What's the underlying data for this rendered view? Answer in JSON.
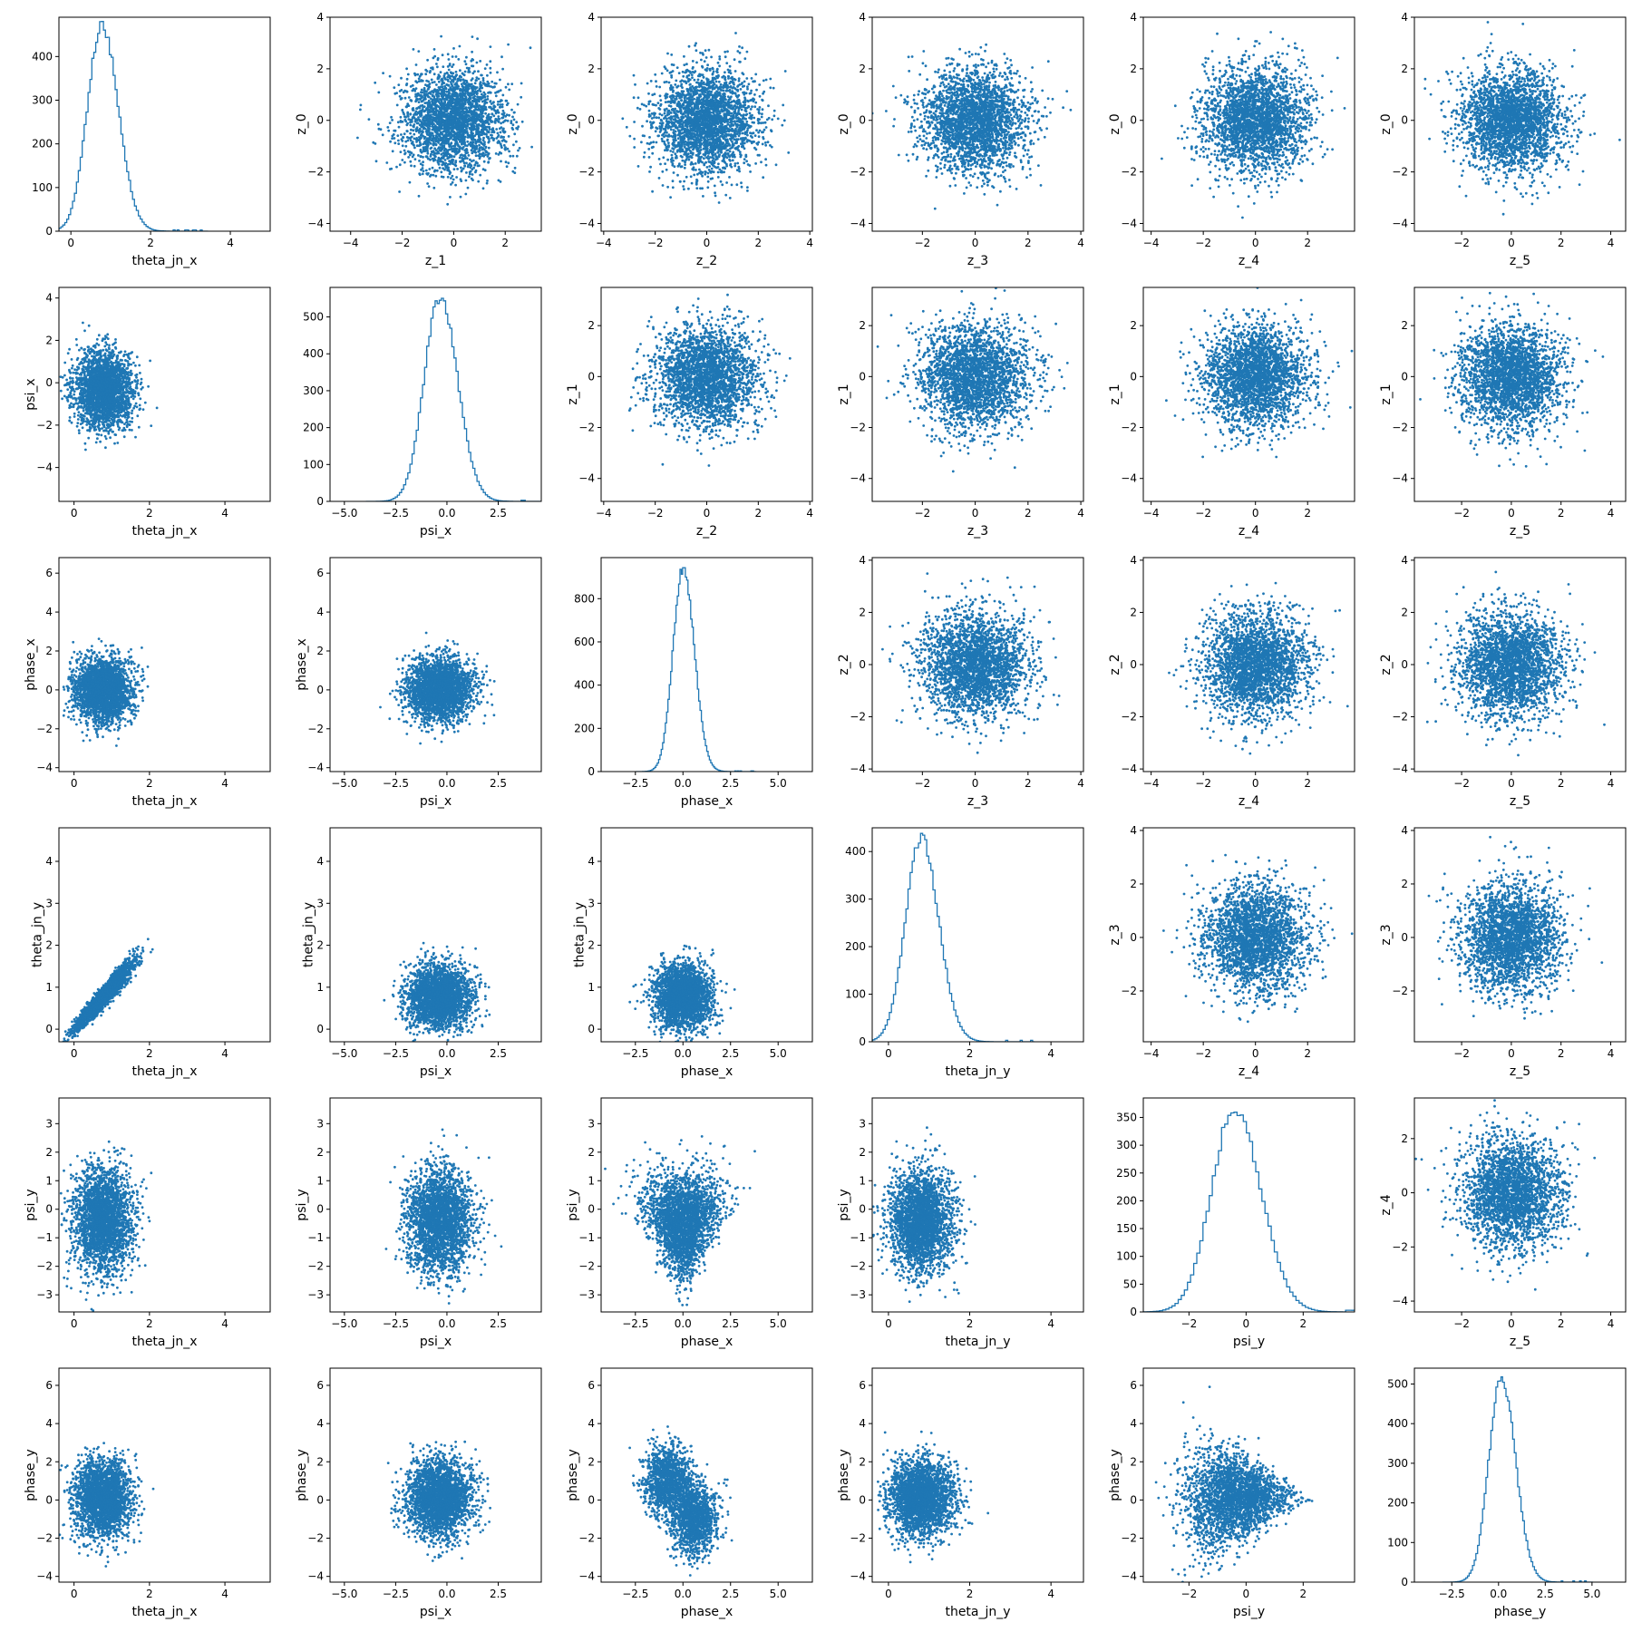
{
  "figure": {
    "type": "pairplot-grid",
    "rows": 6,
    "cols": 6,
    "marker_color": "#1f77b4"
  },
  "chart_data": [
    {
      "type": "histogram",
      "row": 0,
      "col": 0,
      "xlabel": "theta_jn_x",
      "ylabel": "",
      "center": 0.78,
      "spread": 0.38,
      "peak": 470,
      "xlim": [
        -0.3,
        5.0
      ],
      "xticks": [
        0,
        2,
        4
      ],
      "ylim": [
        0,
        490
      ],
      "yticks": [
        0,
        100,
        200,
        300,
        400
      ],
      "seed": 1
    },
    {
      "type": "scatter",
      "row": 0,
      "col": 1,
      "xlabel": "z_1",
      "ylabel": "z_0",
      "xlim": [
        -4.8,
        3.4
      ],
      "ylim": [
        -4.3,
        4.0
      ],
      "xticks": [
        -4,
        -2,
        0,
        2
      ],
      "yticks": [
        -4,
        -2,
        0,
        2,
        4
      ],
      "shape": "blob",
      "cx": 0,
      "cy": 0,
      "sx": 1,
      "sy": 1,
      "seed": 2
    },
    {
      "type": "scatter",
      "row": 0,
      "col": 2,
      "xlabel": "z_2",
      "ylabel": "z_0",
      "xlim": [
        -4.1,
        4.1
      ],
      "ylim": [
        -4.3,
        4.0
      ],
      "xticks": [
        -4,
        -2,
        0,
        2,
        4
      ],
      "yticks": [
        -4,
        -2,
        0,
        2,
        4
      ],
      "shape": "blob",
      "cx": 0,
      "cy": 0,
      "sx": 1,
      "sy": 1,
      "seed": 3
    },
    {
      "type": "scatter",
      "row": 0,
      "col": 3,
      "xlabel": "z_3",
      "ylabel": "z_0",
      "xlim": [
        -3.9,
        4.1
      ],
      "ylim": [
        -4.3,
        4.0
      ],
      "xticks": [
        -2,
        0,
        2,
        4
      ],
      "yticks": [
        -4,
        -2,
        0,
        2,
        4
      ],
      "shape": "blob",
      "cx": 0,
      "cy": 0,
      "sx": 1,
      "sy": 1,
      "seed": 4
    },
    {
      "type": "scatter",
      "row": 0,
      "col": 4,
      "xlabel": "z_4",
      "ylabel": "z_0",
      "xlim": [
        -4.3,
        3.8
      ],
      "ylim": [
        -4.3,
        4.0
      ],
      "xticks": [
        -4,
        -2,
        0,
        2
      ],
      "yticks": [
        -4,
        -2,
        0,
        2,
        4
      ],
      "shape": "blob",
      "cx": 0,
      "cy": 0,
      "sx": 1,
      "sy": 1,
      "seed": 5
    },
    {
      "type": "scatter",
      "row": 0,
      "col": 5,
      "xlabel": "z_5",
      "ylabel": "z_0",
      "xlim": [
        -3.9,
        4.6
      ],
      "ylim": [
        -4.3,
        4.0
      ],
      "xticks": [
        -2,
        0,
        2,
        4
      ],
      "yticks": [
        -4,
        -2,
        0,
        2,
        4
      ],
      "shape": "blob",
      "cx": 0,
      "cy": 0,
      "sx": 1,
      "sy": 1,
      "seed": 6
    },
    {
      "type": "scatter",
      "row": 1,
      "col": 0,
      "xlabel": "theta_jn_x",
      "ylabel": "psi_x",
      "xlim": [
        -0.4,
        5.2
      ],
      "ylim": [
        -5.6,
        4.5
      ],
      "xticks": [
        0,
        2,
        4
      ],
      "yticks": [
        -4,
        -2,
        0,
        2,
        4
      ],
      "shape": "blob",
      "cx": 0.78,
      "cy": -0.35,
      "sx": 0.38,
      "sy": 0.9,
      "seed": 7
    },
    {
      "type": "histogram",
      "row": 1,
      "col": 1,
      "xlabel": "psi_x",
      "ylabel": "",
      "center": -0.35,
      "spread": 0.8,
      "peak": 555,
      "xlim": [
        -5.7,
        4.6
      ],
      "xticks": [
        -5.0,
        -2.5,
        0.0,
        2.5
      ],
      "ylim": [
        0,
        580
      ],
      "yticks": [
        0,
        100,
        200,
        300,
        400,
        500
      ],
      "seed": 8
    },
    {
      "type": "scatter",
      "row": 1,
      "col": 2,
      "xlabel": "z_2",
      "ylabel": "z_1",
      "xlim": [
        -4.1,
        4.1
      ],
      "ylim": [
        -4.9,
        3.5
      ],
      "xticks": [
        -4,
        -2,
        0,
        2,
        4
      ],
      "yticks": [
        -4,
        -2,
        0,
        2
      ],
      "shape": "blob",
      "cx": 0,
      "cy": 0,
      "sx": 1,
      "sy": 1,
      "seed": 9
    },
    {
      "type": "scatter",
      "row": 1,
      "col": 3,
      "xlabel": "z_3",
      "ylabel": "z_1",
      "xlim": [
        -3.9,
        4.1
      ],
      "ylim": [
        -4.9,
        3.5
      ],
      "xticks": [
        -2,
        0,
        2,
        4
      ],
      "yticks": [
        -4,
        -2,
        0,
        2
      ],
      "shape": "blob",
      "cx": 0,
      "cy": 0,
      "sx": 1,
      "sy": 1,
      "seed": 10
    },
    {
      "type": "scatter",
      "row": 1,
      "col": 4,
      "xlabel": "z_4",
      "ylabel": "z_1",
      "xlim": [
        -4.3,
        3.8
      ],
      "ylim": [
        -4.9,
        3.5
      ],
      "xticks": [
        -4,
        -2,
        0,
        2
      ],
      "yticks": [
        -4,
        -2,
        0,
        2
      ],
      "shape": "blob",
      "cx": 0,
      "cy": 0,
      "sx": 1,
      "sy": 1,
      "seed": 11
    },
    {
      "type": "scatter",
      "row": 1,
      "col": 5,
      "xlabel": "z_5",
      "ylabel": "z_1",
      "xlim": [
        -3.9,
        4.6
      ],
      "ylim": [
        -4.9,
        3.5
      ],
      "xticks": [
        -2,
        0,
        2,
        4
      ],
      "yticks": [
        -4,
        -2,
        0,
        2
      ],
      "shape": "blob",
      "cx": 0,
      "cy": 0,
      "sx": 1,
      "sy": 1,
      "seed": 12
    },
    {
      "type": "scatter",
      "row": 2,
      "col": 0,
      "xlabel": "theta_jn_x",
      "ylabel": "phase_x",
      "xlim": [
        -0.4,
        5.2
      ],
      "ylim": [
        -4.2,
        6.8
      ],
      "xticks": [
        0,
        2,
        4
      ],
      "yticks": [
        -4,
        -2,
        0,
        2,
        4,
        6
      ],
      "shape": "blob",
      "cx": 0.78,
      "cy": 0,
      "sx": 0.38,
      "sy": 0.8,
      "seed": 13
    },
    {
      "type": "scatter",
      "row": 2,
      "col": 1,
      "xlabel": "psi_x",
      "ylabel": "phase_x",
      "xlim": [
        -5.7,
        4.6
      ],
      "ylim": [
        -4.2,
        6.8
      ],
      "xticks": [
        -5.0,
        -2.5,
        0.0,
        2.5
      ],
      "yticks": [
        -4,
        -2,
        0,
        2,
        4,
        6
      ],
      "shape": "blob",
      "cx": -0.35,
      "cy": 0,
      "sx": 0.8,
      "sy": 0.8,
      "seed": 14
    },
    {
      "type": "histogram",
      "row": 2,
      "col": 2,
      "xlabel": "phase_x",
      "ylabel": "",
      "center": 0.0,
      "spread": 0.55,
      "peak": 940,
      "xlim": [
        -4.3,
        6.8
      ],
      "xticks": [
        -2.5,
        0.0,
        2.5,
        5.0
      ],
      "ylim": [
        0,
        990
      ],
      "yticks": [
        0,
        200,
        400,
        600,
        800
      ],
      "seed": 15
    },
    {
      "type": "scatter",
      "row": 2,
      "col": 3,
      "xlabel": "z_3",
      "ylabel": "z_2",
      "xlim": [
        -3.9,
        4.1
      ],
      "ylim": [
        -4.1,
        4.1
      ],
      "xticks": [
        -2,
        0,
        2,
        4
      ],
      "yticks": [
        -4,
        -2,
        0,
        2,
        4
      ],
      "shape": "blob",
      "cx": 0,
      "cy": 0,
      "sx": 1,
      "sy": 1,
      "seed": 16
    },
    {
      "type": "scatter",
      "row": 2,
      "col": 4,
      "xlabel": "z_4",
      "ylabel": "z_2",
      "xlim": [
        -4.3,
        3.8
      ],
      "ylim": [
        -4.1,
        4.1
      ],
      "xticks": [
        -4,
        -2,
        0,
        2
      ],
      "yticks": [
        -4,
        -2,
        0,
        2,
        4
      ],
      "shape": "blob",
      "cx": 0,
      "cy": 0,
      "sx": 1,
      "sy": 1,
      "seed": 17
    },
    {
      "type": "scatter",
      "row": 2,
      "col": 5,
      "xlabel": "z_5",
      "ylabel": "z_2",
      "xlim": [
        -3.9,
        4.6
      ],
      "ylim": [
        -4.1,
        4.1
      ],
      "xticks": [
        -2,
        0,
        2,
        4
      ],
      "yticks": [
        -4,
        -2,
        0,
        2,
        4
      ],
      "shape": "blob",
      "cx": 0,
      "cy": 0,
      "sx": 1,
      "sy": 1,
      "seed": 18
    },
    {
      "type": "scatter",
      "row": 3,
      "col": 0,
      "xlabel": "theta_jn_x",
      "ylabel": "theta_jn_y",
      "xlim": [
        -0.4,
        5.2
      ],
      "ylim": [
        -0.3,
        4.8
      ],
      "xticks": [
        0,
        2,
        4
      ],
      "yticks": [
        0,
        1,
        2,
        3,
        4
      ],
      "shape": "diagonal",
      "cx": 0.78,
      "cy": 0.78,
      "sx": 0.38,
      "sy": 0.38,
      "seed": 19
    },
    {
      "type": "scatter",
      "row": 3,
      "col": 1,
      "xlabel": "psi_x",
      "ylabel": "theta_jn_y",
      "xlim": [
        -5.7,
        4.6
      ],
      "ylim": [
        -0.3,
        4.8
      ],
      "xticks": [
        -5.0,
        -2.5,
        0.0,
        2.5
      ],
      "yticks": [
        0,
        1,
        2,
        3,
        4
      ],
      "shape": "blob",
      "cx": -0.35,
      "cy": 0.78,
      "sx": 0.8,
      "sy": 0.38,
      "seed": 20
    },
    {
      "type": "scatter",
      "row": 3,
      "col": 2,
      "xlabel": "phase_x",
      "ylabel": "theta_jn_y",
      "xlim": [
        -4.3,
        6.8
      ],
      "ylim": [
        -0.3,
        4.8
      ],
      "xticks": [
        -2.5,
        0.0,
        2.5,
        5.0
      ],
      "yticks": [
        0,
        1,
        2,
        3,
        4
      ],
      "shape": "blob",
      "cx": 0,
      "cy": 0.78,
      "sx": 0.75,
      "sy": 0.38,
      "seed": 21
    },
    {
      "type": "histogram",
      "row": 3,
      "col": 3,
      "xlabel": "theta_jn_y",
      "ylabel": "",
      "center": 0.8,
      "spread": 0.4,
      "peak": 428,
      "xlim": [
        -0.4,
        4.8
      ],
      "xticks": [
        0,
        2,
        4
      ],
      "ylim": [
        0,
        450
      ],
      "yticks": [
        0,
        100,
        200,
        300,
        400
      ],
      "seed": 22
    },
    {
      "type": "scatter",
      "row": 3,
      "col": 4,
      "xlabel": "z_4",
      "ylabel": "z_3",
      "xlim": [
        -4.3,
        3.8
      ],
      "ylim": [
        -3.9,
        4.1
      ],
      "xticks": [
        -4,
        -2,
        0,
        2
      ],
      "yticks": [
        -2,
        0,
        2,
        4
      ],
      "shape": "blob",
      "cx": 0,
      "cy": 0,
      "sx": 1,
      "sy": 1,
      "seed": 23
    },
    {
      "type": "scatter",
      "row": 3,
      "col": 5,
      "xlabel": "z_5",
      "ylabel": "z_3",
      "xlim": [
        -3.9,
        4.6
      ],
      "ylim": [
        -3.9,
        4.1
      ],
      "xticks": [
        -2,
        0,
        2,
        4
      ],
      "yticks": [
        -2,
        0,
        2,
        4
      ],
      "shape": "blob",
      "cx": 0,
      "cy": 0,
      "sx": 1,
      "sy": 1,
      "seed": 24
    },
    {
      "type": "scatter",
      "row": 4,
      "col": 0,
      "xlabel": "theta_jn_x",
      "ylabel": "psi_y",
      "xlim": [
        -0.4,
        5.2
      ],
      "ylim": [
        -3.6,
        3.9
      ],
      "xticks": [
        0,
        2,
        4
      ],
      "yticks": [
        -3,
        -2,
        -1,
        0,
        1,
        2,
        3
      ],
      "shape": "blob",
      "cx": 0.78,
      "cy": -0.4,
      "sx": 0.38,
      "sy": 0.9,
      "seed": 25
    },
    {
      "type": "scatter",
      "row": 4,
      "col": 1,
      "xlabel": "psi_x",
      "ylabel": "psi_y",
      "xlim": [
        -5.7,
        4.6
      ],
      "ylim": [
        -3.6,
        3.9
      ],
      "xticks": [
        -5.0,
        -2.5,
        0.0,
        2.5
      ],
      "yticks": [
        -3,
        -2,
        -1,
        0,
        1,
        2,
        3
      ],
      "shape": "blob",
      "cx": -0.35,
      "cy": -0.4,
      "sx": 0.8,
      "sy": 0.9,
      "seed": 26
    },
    {
      "type": "scatter",
      "row": 4,
      "col": 2,
      "xlabel": "phase_x",
      "ylabel": "psi_y",
      "xlim": [
        -4.3,
        6.8
      ],
      "ylim": [
        -3.6,
        3.9
      ],
      "xticks": [
        -2.5,
        0.0,
        2.5,
        5.0
      ],
      "yticks": [
        -3,
        -2,
        -1,
        0,
        1,
        2,
        3
      ],
      "shape": "funnel",
      "cx": 0,
      "cy": -0.4,
      "sx": 0.75,
      "sy": 0.9,
      "seed": 27
    },
    {
      "type": "scatter",
      "row": 4,
      "col": 3,
      "xlabel": "theta_jn_y",
      "ylabel": "psi_y",
      "xlim": [
        -0.4,
        4.8
      ],
      "ylim": [
        -3.6,
        3.9
      ],
      "xticks": [
        0,
        2,
        4
      ],
      "yticks": [
        -3,
        -2,
        -1,
        0,
        1,
        2,
        3
      ],
      "shape": "blob",
      "cx": 0.8,
      "cy": -0.4,
      "sx": 0.4,
      "sy": 0.9,
      "seed": 28
    },
    {
      "type": "histogram",
      "row": 4,
      "col": 4,
      "xlabel": "psi_y",
      "ylabel": "",
      "center": -0.4,
      "spread": 0.85,
      "peak": 365,
      "xlim": [
        -3.6,
        3.8
      ],
      "xticks": [
        -2,
        0,
        2
      ],
      "ylim": [
        0,
        385
      ],
      "yticks": [
        0,
        50,
        100,
        150,
        200,
        250,
        300,
        350
      ],
      "seed": 29
    },
    {
      "type": "scatter",
      "row": 4,
      "col": 5,
      "xlabel": "z_5",
      "ylabel": "z_4",
      "xlim": [
        -3.9,
        4.6
      ],
      "ylim": [
        -4.4,
        3.5
      ],
      "xticks": [
        -2,
        0,
        2,
        4
      ],
      "yticks": [
        -4,
        -2,
        0,
        2
      ],
      "shape": "blob",
      "cx": 0,
      "cy": 0,
      "sx": 1,
      "sy": 1,
      "seed": 30
    },
    {
      "type": "scatter",
      "row": 5,
      "col": 0,
      "xlabel": "theta_jn_x",
      "ylabel": "phase_y",
      "xlim": [
        -0.4,
        5.2
      ],
      "ylim": [
        -4.3,
        6.9
      ],
      "xticks": [
        0,
        2,
        4
      ],
      "yticks": [
        -4,
        -2,
        0,
        2,
        4,
        6
      ],
      "shape": "blob",
      "cx": 0.78,
      "cy": 0.1,
      "sx": 0.38,
      "sy": 1.0,
      "seed": 31
    },
    {
      "type": "scatter",
      "row": 5,
      "col": 1,
      "xlabel": "psi_x",
      "ylabel": "phase_y",
      "xlim": [
        -5.7,
        4.6
      ],
      "ylim": [
        -4.3,
        6.9
      ],
      "xticks": [
        -5.0,
        -2.5,
        0.0,
        2.5
      ],
      "yticks": [
        -4,
        -2,
        0,
        2,
        4,
        6
      ],
      "shape": "blob",
      "cx": -0.35,
      "cy": 0.1,
      "sx": 0.8,
      "sy": 1.0,
      "seed": 32
    },
    {
      "type": "scatter",
      "row": 5,
      "col": 2,
      "xlabel": "phase_x",
      "ylabel": "phase_y",
      "xlim": [
        -4.3,
        6.8
      ],
      "ylim": [
        -4.3,
        6.9
      ],
      "xticks": [
        -2.5,
        0.0,
        2.5,
        5.0
      ],
      "yticks": [
        -4,
        -2,
        0,
        2,
        4,
        6
      ],
      "shape": "twoblob",
      "cx": 0,
      "cy": 0.1,
      "sx": 0.75,
      "sy": 1.0,
      "seed": 33
    },
    {
      "type": "scatter",
      "row": 5,
      "col": 3,
      "xlabel": "theta_jn_y",
      "ylabel": "phase_y",
      "xlim": [
        -0.4,
        4.8
      ],
      "ylim": [
        -4.3,
        6.9
      ],
      "xticks": [
        0,
        2,
        4
      ],
      "yticks": [
        -4,
        -2,
        0,
        2,
        4,
        6
      ],
      "shape": "blob",
      "cx": 0.8,
      "cy": 0.1,
      "sx": 0.4,
      "sy": 1.0,
      "seed": 34
    },
    {
      "type": "scatter",
      "row": 5,
      "col": 4,
      "xlabel": "psi_y",
      "ylabel": "phase_y",
      "xlim": [
        -3.6,
        3.8
      ],
      "ylim": [
        -4.3,
        6.9
      ],
      "xticks": [
        -2,
        0,
        2
      ],
      "yticks": [
        -4,
        -2,
        0,
        2,
        4,
        6
      ],
      "shape": "fan",
      "cx": -0.4,
      "cy": 0.1,
      "sx": 0.85,
      "sy": 1.0,
      "seed": 35
    },
    {
      "type": "histogram",
      "row": 5,
      "col": 5,
      "xlabel": "phase_y",
      "ylabel": "",
      "center": 0.15,
      "spread": 0.7,
      "peak": 515,
      "xlim": [
        -4.5,
        6.8
      ],
      "xticks": [
        -2.5,
        0.0,
        2.5,
        5.0
      ],
      "ylim": [
        0,
        540
      ],
      "yticks": [
        0,
        100,
        200,
        300,
        400,
        500
      ],
      "seed": 36
    }
  ]
}
